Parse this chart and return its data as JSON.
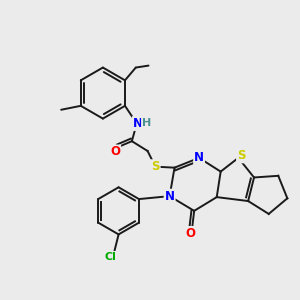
{
  "background_color": "#ebebeb",
  "bond_color": "#1a1a1a",
  "atom_colors": {
    "N": "#0000ff",
    "O": "#ff0000",
    "S": "#cccc00",
    "Cl": "#00aa00",
    "C": "#1a1a1a",
    "H": "#4a9090"
  },
  "figsize": [
    3.0,
    3.0
  ],
  "dpi": 100
}
